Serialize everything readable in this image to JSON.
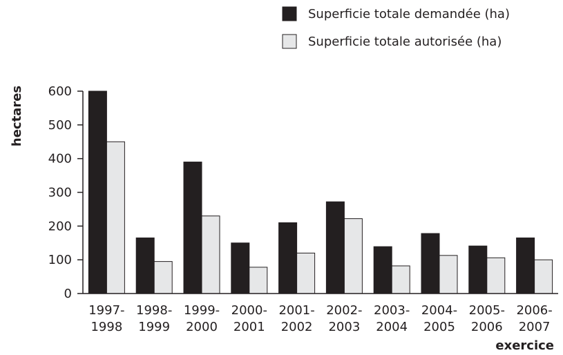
{
  "chart_data": {
    "type": "bar",
    "categories": [
      "1997-1998",
      "1998-1999",
      "1999-2000",
      "2000-2001",
      "2001-2002",
      "2002-2003",
      "2003-2004",
      "2004-2005",
      "2005-2006",
      "2006-2007"
    ],
    "series": [
      {
        "name": "Superficie totale demandée (ha)",
        "color": "#231f20",
        "values": [
          600,
          165,
          390,
          150,
          210,
          272,
          139,
          178,
          141,
          165
        ]
      },
      {
        "name": "Superficie totale autorisée (ha)",
        "color": "#e6e7e8",
        "values": [
          450,
          95,
          230,
          78,
          120,
          222,
          82,
          113,
          106,
          100
        ]
      }
    ],
    "ylim": [
      0,
      600
    ],
    "yticks": [
      0,
      100,
      200,
      300,
      400,
      500,
      600
    ],
    "xlabel": "exercice",
    "ylabel": "hectares",
    "legend": "top-right"
  }
}
